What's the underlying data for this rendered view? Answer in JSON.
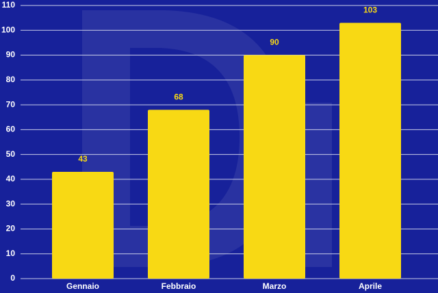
{
  "chart_data": {
    "type": "bar",
    "categories": [
      "Gennaio",
      "Febbraio",
      "Marzo",
      "Aprile"
    ],
    "values": [
      43,
      68,
      90,
      103
    ],
    "color": "#f8d914",
    "ylim": [
      0,
      110
    ],
    "yticks": [
      0,
      10,
      20,
      30,
      40,
      50,
      60,
      70,
      80,
      90,
      100,
      110
    ],
    "grid": true
  }
}
